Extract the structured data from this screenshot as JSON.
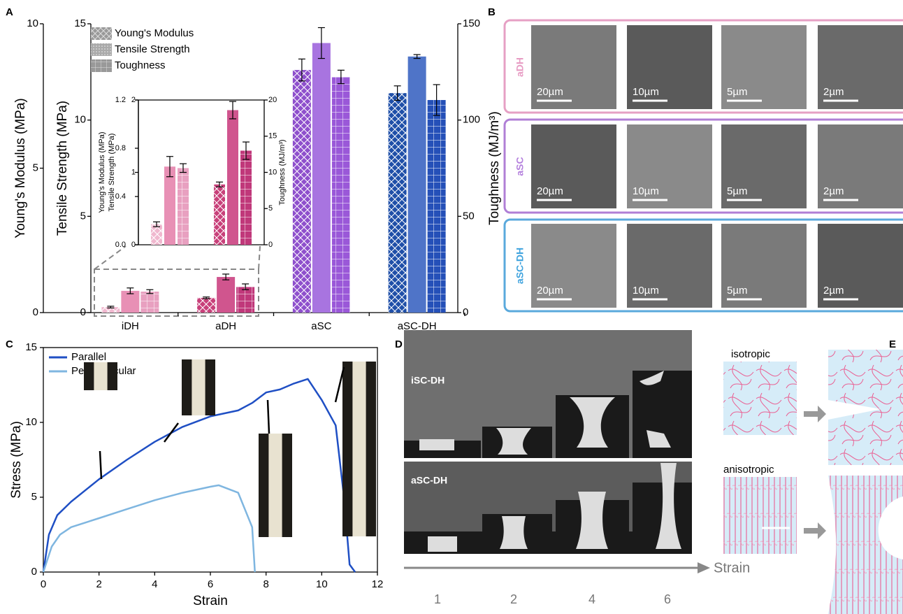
{
  "panel_labels": [
    "A",
    "B",
    "C",
    "D",
    "E"
  ],
  "chart_data": [
    {
      "type": "bar",
      "categories": [
        "iDH",
        "aDH",
        "aSC",
        "aSC-DH"
      ],
      "ylabel": "Young's Modulus (MPa)",
      "ylim": [
        0,
        10
      ],
      "yticks": [
        0,
        5,
        10
      ],
      "y2label": "Tensile Strength (MPa)",
      "y2lim": [
        0,
        15
      ],
      "y2ticks": [
        0,
        5,
        10,
        15
      ],
      "y3label": "Toughness (MJ/m³)",
      "y3lim": [
        0,
        150
      ],
      "y3ticks": [
        0,
        50,
        100,
        150
      ],
      "series": [
        {
          "name": "Young's Modulus",
          "axis": "y",
          "pattern": "cross",
          "colors": [
            "#f0b8cf",
            "#c8407a",
            "#8e4fcc",
            "#1f4fa8"
          ],
          "values": [
            0.19,
            0.51,
            8.4,
            7.6
          ],
          "errors": [
            0.03,
            0.03,
            0.38,
            0.25
          ]
        },
        {
          "name": "Tensile Strength",
          "axis": "y2",
          "pattern": "none",
          "colors": [
            "#e890b5",
            "#d0558e",
            "#a874e0",
            "#4f74c8"
          ],
          "values": [
            1.13,
            1.85,
            14.0,
            13.3
          ],
          "errors": [
            0.15,
            0.15,
            0.8,
            0.1
          ]
        },
        {
          "name": "Toughness",
          "axis": "y3",
          "pattern": "grid",
          "colors": [
            "#e8a0c0",
            "#c0387a",
            "#9a58d8",
            "#2550b8"
          ],
          "values": [
            10.9,
            13.4,
            122.4,
            110.4
          ],
          "errors": [
            1.0,
            1.5,
            3.5,
            8.0
          ]
        }
      ]
    },
    {
      "type": "bar",
      "ylabel": "Young's Modulus (MPa)",
      "ylim": [
        0,
        1.2
      ],
      "yticks": [
        {
          "value": 0,
          "label": "0.0"
        },
        0.4,
        0.8,
        1.2
      ],
      "y2label": "Tensile Strength (MPa)",
      "y2lim": [
        0,
        2
      ],
      "y2ticks": [
        0,
        1,
        2
      ],
      "y3label": "Toughness (MJ/m³)",
      "y3lim": [
        0,
        20
      ],
      "y3ticks": [
        0,
        5,
        10,
        15,
        20
      ],
      "series": [
        {
          "axis": "y",
          "pattern": "cross",
          "colors": [
            "#f0b8cf",
            "#c8407a"
          ],
          "values": [
            0.17,
            0.5
          ],
          "errors": [
            0.02,
            0.02
          ]
        },
        {
          "axis": "y2",
          "pattern": "none",
          "colors": [
            "#e890b5",
            "#d0558e"
          ],
          "values": [
            1.08,
            1.86
          ],
          "errors": [
            0.14,
            0.12
          ]
        },
        {
          "axis": "y3",
          "pattern": "grid",
          "colors": [
            "#e8a0c0",
            "#c0387a"
          ],
          "values": [
            10.6,
            13.0
          ],
          "errors": [
            0.6,
            1.2
          ]
        }
      ]
    },
    {
      "type": "line",
      "xlabel": "Strain",
      "ylabel": "Stress (MPa)",
      "xlim": [
        0,
        12
      ],
      "xticks": [
        0,
        2,
        4,
        6,
        8,
        10,
        12
      ],
      "ylim": [
        0,
        15
      ],
      "yticks": [
        0,
        5,
        10,
        15
      ],
      "legend": "upper left",
      "series": [
        {
          "name": "Parallel",
          "color": "#1f4fc4",
          "x": [
            0,
            0.2,
            0.5,
            1,
            2,
            3,
            4,
            5,
            6,
            7,
            7.5,
            8,
            8.5,
            9,
            9.5,
            10,
            10.5,
            10.8,
            11,
            11.2
          ],
          "values": [
            0,
            2.5,
            3.8,
            4.7,
            6.2,
            7.5,
            8.7,
            9.7,
            10.4,
            10.8,
            11.3,
            12.0,
            12.2,
            12.6,
            12.9,
            11.5,
            9.8,
            5.0,
            0.5,
            0
          ]
        },
        {
          "name": "Perpendicular",
          "color": "#7fb6e0",
          "x": [
            0,
            0.3,
            0.6,
            1,
            2,
            3,
            4,
            5,
            6,
            6.3,
            7,
            7.5,
            7.6
          ],
          "values": [
            0,
            1.7,
            2.5,
            3.0,
            3.6,
            4.2,
            4.8,
            5.3,
            5.7,
            5.8,
            5.3,
            3.0,
            0
          ]
        }
      ]
    }
  ],
  "sem": {
    "rows": [
      "aDH",
      "aSC",
      "aSC-DH"
    ],
    "scale_bars": [
      "20µm",
      "10µm",
      "5µm",
      "2µm"
    ]
  },
  "tensile_test": {
    "rows": [
      "iSC-DH",
      "aSC-DH"
    ],
    "axis_label": "Strain",
    "strains": [
      "1",
      "2",
      "4",
      "6"
    ]
  },
  "schematic": {
    "labels": [
      "isotropic",
      "anisotropic"
    ]
  }
}
